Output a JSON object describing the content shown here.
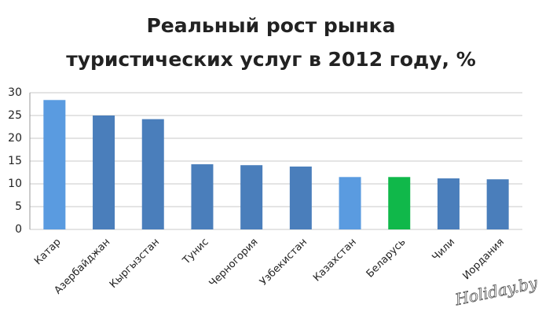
{
  "chart_data": {
    "type": "bar",
    "title": [
      "Реальный рост рынка",
      "туристических услуг в 2012 году, %"
    ],
    "categories": [
      "Катар",
      "Азербайджан",
      "Кыргызстан",
      "Тунис",
      "Черногория",
      "Узбекистан",
      "Казахстан",
      "Беларусь",
      "Чили",
      "Иордания"
    ],
    "values": [
      28.4,
      25.0,
      24.2,
      14.3,
      14.1,
      13.8,
      11.5,
      11.5,
      11.2,
      11.0
    ],
    "colors": [
      "#5a9be0",
      "#4a7ebb",
      "#4a7ebb",
      "#4a7ebb",
      "#4a7ebb",
      "#4a7ebb",
      "#5a9be0",
      "#10b84a",
      "#4a7ebb",
      "#4a7ebb"
    ],
    "ylim": [
      0,
      30
    ],
    "yticks": [
      0,
      5,
      10,
      15,
      20,
      25,
      30
    ],
    "grid": true,
    "watermark": "Holiday.by"
  }
}
